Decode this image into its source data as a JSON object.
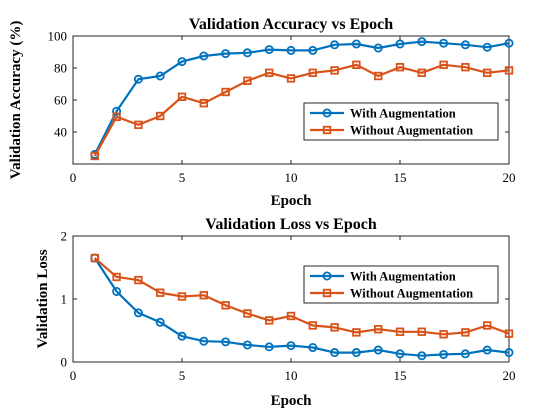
{
  "chart_data": [
    {
      "type": "line",
      "title": "Validation Accuracy vs Epoch",
      "xlabel": "Epoch",
      "ylabel": "Validation Accuracy (%)",
      "xlim": [
        0,
        20
      ],
      "ylim": [
        20,
        100
      ],
      "xticks": [
        "0",
        "5",
        "10",
        "15",
        "20"
      ],
      "yticks": [
        "40",
        "60",
        "80",
        "100"
      ],
      "legend_position": "lower-right",
      "grid": false,
      "x": [
        1,
        2,
        3,
        4,
        5,
        6,
        7,
        8,
        9,
        10,
        11,
        12,
        13,
        14,
        15,
        16,
        17,
        18,
        19,
        20
      ],
      "series": [
        {
          "name": "With Augmentation",
          "color": "#0072BD",
          "marker": "circle",
          "values": [
            26,
            53,
            73,
            75,
            84,
            87.5,
            89,
            89.5,
            91.5,
            91,
            91,
            94.5,
            95,
            92.5,
            95,
            96.5,
            95.5,
            94.5,
            93,
            95.5
          ]
        },
        {
          "name": "Without Augmentation",
          "color": "#D95319",
          "marker": "square",
          "values": [
            25,
            49.5,
            44.5,
            50,
            62,
            58,
            65,
            72,
            77,
            73.5,
            77,
            78.5,
            82,
            75,
            80.5,
            77,
            82,
            80.5,
            77,
            78.5
          ]
        }
      ]
    },
    {
      "type": "line",
      "title": "Validation Loss vs Epoch",
      "xlabel": "Epoch",
      "ylabel": "Validation Loss",
      "xlim": [
        0,
        20
      ],
      "ylim": [
        0,
        2
      ],
      "xticks": [
        "0",
        "5",
        "10",
        "15",
        "20"
      ],
      "yticks": [
        "0",
        "1",
        "2"
      ],
      "legend_position": "upper-right",
      "grid": false,
      "x": [
        1,
        2,
        3,
        4,
        5,
        6,
        7,
        8,
        9,
        10,
        11,
        12,
        13,
        14,
        15,
        16,
        17,
        18,
        19,
        20
      ],
      "series": [
        {
          "name": "With Augmentation",
          "color": "#0072BD",
          "marker": "circle",
          "values": [
            1.65,
            1.12,
            0.78,
            0.63,
            0.41,
            0.33,
            0.32,
            0.27,
            0.24,
            0.26,
            0.23,
            0.15,
            0.15,
            0.19,
            0.13,
            0.1,
            0.12,
            0.13,
            0.19,
            0.15
          ]
        },
        {
          "name": "Without Augmentation",
          "color": "#D95319",
          "marker": "square",
          "values": [
            1.65,
            1.35,
            1.3,
            1.1,
            1.04,
            1.06,
            0.9,
            0.77,
            0.66,
            0.73,
            0.58,
            0.55,
            0.47,
            0.52,
            0.48,
            0.48,
            0.44,
            0.47,
            0.58,
            0.45
          ]
        }
      ]
    }
  ]
}
